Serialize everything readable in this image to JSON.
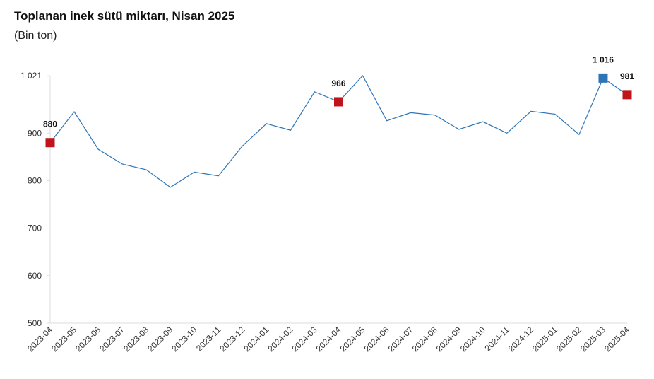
{
  "chart_data": {
    "type": "line",
    "title": "Toplanan inek sütü miktarı, Nisan 2025",
    "subtitle": "(Bin ton)",
    "categories": [
      "2023-04",
      "2023-05",
      "2023-06",
      "2023-07",
      "2023-08",
      "2023-09",
      "2023-10",
      "2023-11",
      "2023-12",
      "2024-01",
      "2024-02",
      "2024-03",
      "2024-04",
      "2024-05",
      "2024-06",
      "2024-07",
      "2024-08",
      "2024-09",
      "2024-10",
      "2024-11",
      "2024-12",
      "2025-01",
      "2025-02",
      "2025-03",
      "2025-04"
    ],
    "series": [
      {
        "color": "#2e75b6",
        "values": [
          880,
          945,
          866,
          835,
          823,
          786,
          818,
          810,
          873,
          920,
          906,
          987,
          966,
          1021,
          926,
          943,
          938,
          908,
          924,
          900,
          946,
          940,
          897,
          1016,
          981
        ],
        "value_labels": [
          "880",
          null,
          null,
          null,
          null,
          null,
          null,
          null,
          null,
          null,
          null,
          null,
          "966",
          null,
          null,
          null,
          null,
          null,
          null,
          null,
          null,
          null,
          null,
          "1 016",
          "981"
        ],
        "marker_colors": [
          "#c0141c",
          null,
          null,
          null,
          null,
          null,
          null,
          null,
          null,
          null,
          null,
          null,
          "#c0141c",
          null,
          null,
          null,
          null,
          null,
          null,
          null,
          null,
          null,
          null,
          "#2e75b6",
          "#c0141c"
        ]
      }
    ],
    "ylim": [
      500,
      1021
    ],
    "yticks": [
      500,
      600,
      700,
      800,
      900,
      {
        "value": 1021,
        "label": "1 021"
      }
    ],
    "grid": false
  }
}
